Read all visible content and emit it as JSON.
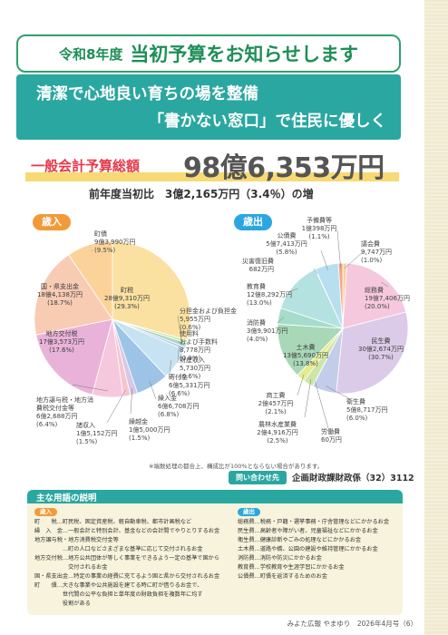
{
  "header": {
    "title_small": "令和8年度",
    "title_big": "当初予算をお知らせします"
  },
  "slogan": {
    "line1": "清潔で心地良い育ちの場を整備",
    "line2": "「書かない窓口」で住民に優しく"
  },
  "total": {
    "label": "一般会計予算総額",
    "amount": "98億6,353万円"
  },
  "comparison": "前年度当初比　3億2,165万円（3.4％）の増",
  "revenue": {
    "tag": "歳入",
    "items": [
      {
        "name": "町税",
        "amount": "28億9,310万円",
        "pct": "(29.3%)",
        "value": 29.3,
        "color": "#fbe1a1"
      },
      {
        "name": "分担金および負担金",
        "amount": "5,955万円",
        "pct": "(0.6%)",
        "value": 0.6,
        "color": "#cde6a8"
      },
      {
        "name": "使用料および手数料",
        "amount": "8,778万円",
        "pct": "(0.9%)",
        "value": 0.9,
        "color": "#a8d8c4"
      },
      {
        "name": "財産収入",
        "amount": "5,730万円",
        "pct": "(0.6%)",
        "value": 0.6,
        "color": "#b5cfe9"
      },
      {
        "name": "寄付金",
        "amount": "6億5,331万円",
        "pct": "(6.6%)",
        "value": 6.6,
        "color": "#c7e3f2"
      },
      {
        "name": "繰入金",
        "amount": "6億6,708万円",
        "pct": "(6.8%)",
        "value": 6.8,
        "color": "#9dc3e6"
      },
      {
        "name": "繰越金",
        "amount": "1億5,000万円",
        "pct": "(1.5%)",
        "value": 1.5,
        "color": "#d7c6e6"
      },
      {
        "name": "諸収入",
        "amount": "1億5,152万円",
        "pct": "(1.5%)",
        "value": 1.5,
        "color": "#f5c6cf"
      },
      {
        "name": "地方譲与税・地方消費税交付金等",
        "amount": "6億2,688万円",
        "pct": "(6.4%)",
        "value": 6.4,
        "color": "#f6c8dd"
      },
      {
        "name": "地方交付税",
        "amount": "17億3,573万円",
        "pct": "(17.6%)",
        "value": 17.6,
        "color": "#e9b3d9"
      },
      {
        "name": "国・県支出金",
        "amount": "18億4,138万円",
        "pct": "(18.7%)",
        "value": 18.7,
        "color": "#f8cbb3"
      },
      {
        "name": "町債",
        "amount": "9億3,990万円",
        "pct": "(9.5%)",
        "value": 9.5,
        "color": "#fbd39a"
      }
    ]
  },
  "expenditure": {
    "tag": "歳出",
    "items": [
      {
        "name": "議会費",
        "amount": "9,747万円",
        "pct": "(1.0%)",
        "value": 1.0,
        "color": "#f9cf9b"
      },
      {
        "name": "総務費",
        "amount": "19億7,406万円",
        "pct": "(20.0%)",
        "value": 20.0,
        "color": "#f6c8dd"
      },
      {
        "name": "民生費",
        "amount": "30億2,674万円",
        "pct": "(30.7%)",
        "value": 30.7,
        "color": "#dccbe8"
      },
      {
        "name": "衛生費",
        "amount": "5億8,717万円",
        "pct": "(6.0%)",
        "value": 6.0,
        "color": "#c3cde9"
      },
      {
        "name": "労働費",
        "amount": "60万円",
        "pct": "(0.0%)",
        "value": 0.05,
        "color": "#b7d6ee"
      },
      {
        "name": "農林水産業費",
        "amount": "2億4,916万円",
        "pct": "(2.5%)",
        "value": 2.5,
        "color": "#cde6a8"
      },
      {
        "name": "商工費",
        "amount": "2億457万円",
        "pct": "(2.1%)",
        "value": 2.1,
        "color": "#e6ec8e"
      },
      {
        "name": "土木費",
        "amount": "13億5,690万円",
        "pct": "(13.8%)",
        "value": 13.8,
        "color": "#a8d8b8"
      },
      {
        "name": "消防費",
        "amount": "3億9,901万円",
        "pct": "(4.0%)",
        "value": 4.0,
        "color": "#a6dccc"
      },
      {
        "name": "教育費",
        "amount": "12億8,292万円",
        "pct": "(13.0%)",
        "value": 13.0,
        "color": "#b3e2e0"
      },
      {
        "name": "災害復旧費",
        "amount": "682万円",
        "pct": "(0.1%)",
        "value": 0.1,
        "color": "#c7e3f2"
      },
      {
        "name": "公債費",
        "amount": "5億7,413万円",
        "pct": "(5.8%)",
        "value": 5.8,
        "color": "#b8dff0"
      },
      {
        "name": "予備費等",
        "amount": "1億398万円",
        "pct": "(1.1%)",
        "value": 1.1,
        "color": "#f2a78a"
      }
    ]
  },
  "footnote": "※端数処理の都合上、構成比が100%とならない場合があります。",
  "contact": {
    "tag": "問い合わせ先",
    "text": "企画財政課財政係（32）3112"
  },
  "glossary": {
    "title": "主な用語の説明",
    "revenue_head": "歳入",
    "revenue_lines": [
      "町　　税…町民税、固定資産税、軽自動車税、都市計画税など",
      "繰　入　金…一般会計と特別会計、基金などの会計間でやりとりするお金",
      "地方譲与税・地方消費税交付金等",
      "　　　　　…町の人口などさまざまな基準に応じて交付されるお金",
      "地方交付税…地方公共団体が等しく事業をできるよう一定の基準で国から",
      "　　　　　　交付されるお金",
      "国・県支出金…特定の事業の経費に充てるよう国と県から交付されるお金",
      "町　　債…大きな事業や公共施設を建てる時に町が借りるお金で、",
      "　　　　　世代間の公平な負担と単年度の財政負担を複数年に均す",
      "　　　　　役割がある"
    ],
    "expenditure_head": "歳出",
    "expenditure_lines": [
      "総務費…税務・戸籍・選挙事務・庁舎管理などにかかるお金",
      "民生費…高齢者や障がい者、児童福祉などにかかるお金",
      "衛生費…健康診断やごみの処理などにかかるお金",
      "土木費…道路や橋、公園の建設や維持管理にかかるお金",
      "消防費…消防や防災にかかるお金",
      "教育費…学校教育や生涯学習にかかるお金",
      "公債費…町債を返済するためのお金"
    ]
  },
  "footer": "みよた広報 やまゆり　2026年4月号（6）"
}
